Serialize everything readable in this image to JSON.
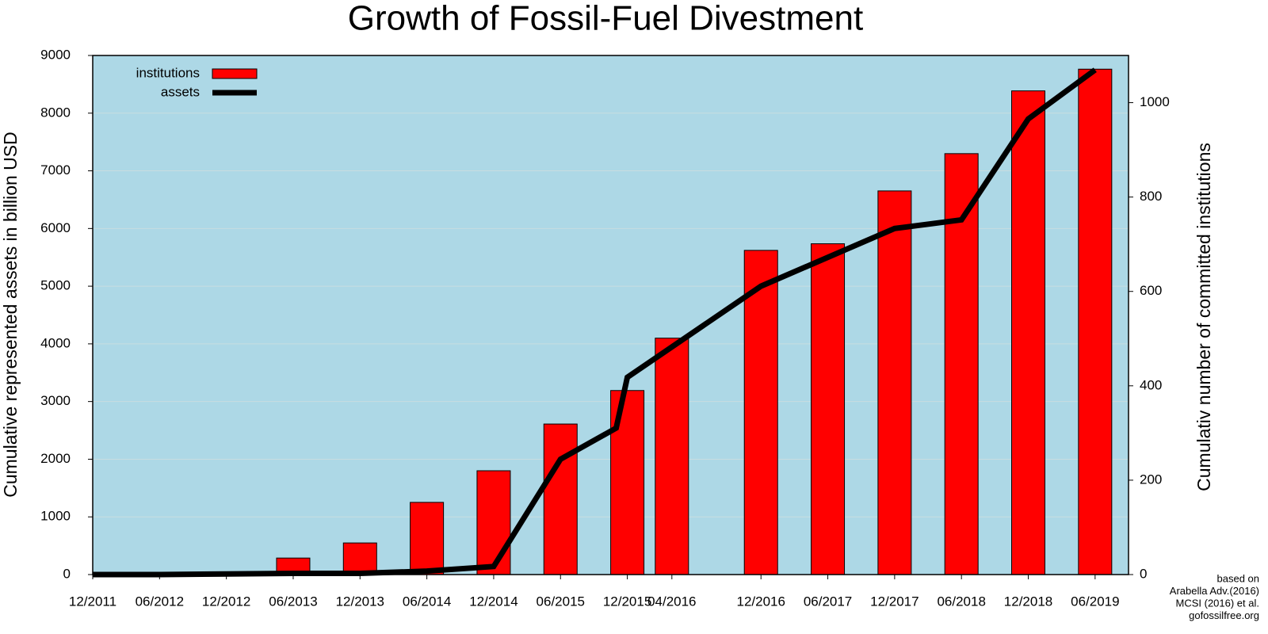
{
  "chart_data": {
    "type": "bar",
    "title": "Growth of Fossil-Fuel Divestment",
    "ylabel": "Cumulative represented assets in billion USD",
    "y2label": "Cumulativ number of committed institutions",
    "annotation": [
      "based on",
      "Arabella Adv.(2016)",
      "MCSI (2016) et al.",
      "gofossilfree.org"
    ],
    "xlim": [
      "12/2011",
      "09/2019"
    ],
    "xticks": [
      "12/2011",
      "06/2012",
      "12/2012",
      "06/2013",
      "12/2013",
      "06/2014",
      "12/2014",
      "06/2015",
      "12/2015",
      "04/2016",
      "12/2016",
      "06/2017",
      "12/2017",
      "06/2018",
      "12/2018",
      "06/2019"
    ],
    "ylim": [
      0,
      9000
    ],
    "yticks": [
      0,
      1000,
      2000,
      3000,
      4000,
      5000,
      6000,
      7000,
      8000,
      9000
    ],
    "y2lim": [
      0,
      1100
    ],
    "y2ticks": [
      0,
      200,
      400,
      600,
      800,
      1000
    ],
    "grid": true,
    "background": "#add8e6",
    "legend": "top-left",
    "series": [
      {
        "name": "institutions",
        "type": "bar",
        "axis": "y2",
        "color": "#ff0000",
        "x": [
          "06/2013",
          "12/2013",
          "06/2014",
          "12/2014",
          "06/2015",
          "12/2015",
          "04/2016",
          "12/2016",
          "06/2017",
          "12/2017",
          "06/2018",
          "12/2018",
          "06/2019"
        ],
        "values": [
          35,
          67,
          153,
          220,
          319,
          390,
          501,
          687,
          701,
          813,
          892,
          1025,
          1071
        ]
      },
      {
        "name": "assets",
        "type": "line",
        "color": "#000000",
        "x": [
          "12/2011",
          "06/2012",
          "12/2012",
          "06/2013",
          "12/2013",
          "06/2014",
          "12/2014",
          "06/2015",
          "11/2015",
          "12/2015",
          "12/2016",
          "12/2017",
          "06/2018",
          "12/2018",
          "06/2019"
        ],
        "values": [
          0,
          0,
          10,
          20,
          20,
          60,
          140,
          2000,
          2540,
          3420,
          5000,
          6000,
          6150,
          7900,
          8750
        ]
      }
    ]
  }
}
